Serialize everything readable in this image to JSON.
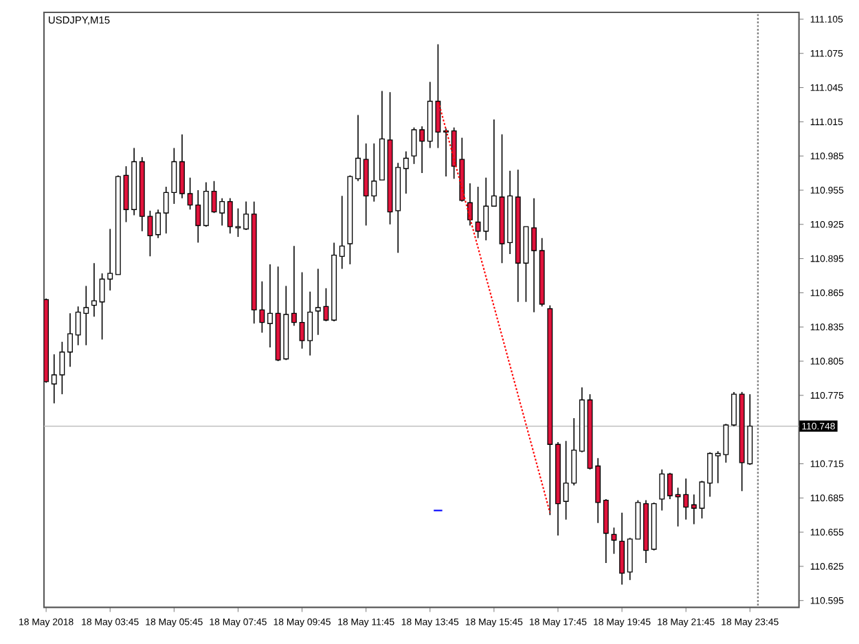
{
  "chart_data": {
    "type": "candlestick",
    "title": "USDJPY,M15",
    "x": [
      "2018-05-18T01:45",
      "2018-05-18T02:00",
      "2018-05-18T02:15",
      "2018-05-18T02:30",
      "2018-05-18T02:45",
      "2018-05-18T03:00",
      "2018-05-18T03:15",
      "2018-05-18T03:30",
      "2018-05-18T03:45",
      "2018-05-18T04:00",
      "2018-05-18T04:15",
      "2018-05-18T04:30",
      "2018-05-18T04:45",
      "2018-05-18T05:00",
      "2018-05-18T05:15",
      "2018-05-18T05:30",
      "2018-05-18T05:45",
      "2018-05-18T06:00",
      "2018-05-18T06:15",
      "2018-05-18T06:30",
      "2018-05-18T06:45",
      "2018-05-18T07:00",
      "2018-05-18T07:15",
      "2018-05-18T07:30",
      "2018-05-18T07:45",
      "2018-05-18T08:00",
      "2018-05-18T08:15",
      "2018-05-18T08:30",
      "2018-05-18T08:45",
      "2018-05-18T09:00",
      "2018-05-18T09:15",
      "2018-05-18T09:30",
      "2018-05-18T09:45",
      "2018-05-18T10:00",
      "2018-05-18T10:15",
      "2018-05-18T10:30",
      "2018-05-18T10:45",
      "2018-05-18T11:00",
      "2018-05-18T11:15",
      "2018-05-18T11:30",
      "2018-05-18T11:45",
      "2018-05-18T12:00",
      "2018-05-18T12:15",
      "2018-05-18T12:30",
      "2018-05-18T12:45",
      "2018-05-18T13:00",
      "2018-05-18T13:15",
      "2018-05-18T13:30",
      "2018-05-18T13:45",
      "2018-05-18T14:00",
      "2018-05-18T14:15",
      "2018-05-18T14:30",
      "2018-05-18T14:45",
      "2018-05-18T15:00",
      "2018-05-18T15:15",
      "2018-05-18T15:30",
      "2018-05-18T15:45",
      "2018-05-18T16:00",
      "2018-05-18T16:15",
      "2018-05-18T16:30",
      "2018-05-18T16:45",
      "2018-05-18T17:00",
      "2018-05-18T17:15",
      "2018-05-18T17:30",
      "2018-05-18T17:45",
      "2018-05-18T18:00",
      "2018-05-18T18:15",
      "2018-05-18T18:30",
      "2018-05-18T18:45",
      "2018-05-18T19:00",
      "2018-05-18T19:15",
      "2018-05-18T19:30",
      "2018-05-18T19:45",
      "2018-05-18T20:00",
      "2018-05-18T20:15",
      "2018-05-18T20:30",
      "2018-05-18T20:45",
      "2018-05-18T21:00",
      "2018-05-18T21:15",
      "2018-05-18T21:30",
      "2018-05-18T21:45",
      "2018-05-18T22:00",
      "2018-05-18T22:15",
      "2018-05-18T22:30",
      "2018-05-18T22:45",
      "2018-05-18T23:00",
      "2018-05-18T23:15",
      "2018-05-18T23:30",
      "2018-05-18T23:45"
    ],
    "ohlc": [
      [
        110.859,
        110.86,
        110.786,
        110.787
      ],
      [
        110.785,
        110.811,
        110.768,
        110.793
      ],
      [
        110.793,
        110.822,
        110.776,
        110.813
      ],
      [
        110.813,
        110.847,
        110.8,
        110.829
      ],
      [
        110.828,
        110.853,
        110.819,
        110.848
      ],
      [
        110.847,
        110.871,
        110.819,
        110.852
      ],
      [
        110.854,
        110.891,
        110.844,
        110.858
      ],
      [
        110.857,
        110.882,
        110.824,
        110.877
      ],
      [
        110.877,
        110.921,
        110.867,
        110.882
      ],
      [
        110.881,
        110.968,
        110.881,
        110.967
      ],
      [
        110.968,
        110.976,
        110.927,
        110.938
      ],
      [
        110.938,
        110.992,
        110.933,
        110.98
      ],
      [
        110.98,
        110.984,
        110.919,
        110.932
      ],
      [
        110.932,
        110.937,
        110.897,
        110.915
      ],
      [
        110.916,
        110.938,
        110.913,
        110.935
      ],
      [
        110.935,
        110.958,
        110.917,
        110.953
      ],
      [
        110.953,
        110.992,
        110.943,
        110.98
      ],
      [
        110.98,
        111.004,
        110.948,
        110.952
      ],
      [
        110.952,
        110.966,
        110.938,
        110.942
      ],
      [
        110.942,
        110.955,
        110.909,
        110.924
      ],
      [
        110.924,
        110.962,
        110.923,
        110.954
      ],
      [
        110.954,
        110.963,
        110.935,
        110.936
      ],
      [
        110.935,
        110.948,
        110.924,
        110.945
      ],
      [
        110.945,
        110.948,
        110.917,
        110.923
      ],
      [
        110.922,
        110.939,
        110.914,
        110.923
      ],
      [
        110.921,
        110.945,
        110.92,
        110.934
      ],
      [
        110.934,
        110.945,
        110.838,
        110.85
      ],
      [
        110.85,
        110.875,
        110.83,
        110.839
      ],
      [
        110.838,
        110.89,
        110.817,
        110.847
      ],
      [
        110.847,
        110.888,
        110.805,
        110.806
      ],
      [
        110.807,
        110.871,
        110.806,
        110.846
      ],
      [
        110.847,
        110.906,
        110.836,
        110.839
      ],
      [
        110.839,
        110.883,
        110.816,
        110.823
      ],
      [
        110.823,
        110.866,
        110.81,
        110.848
      ],
      [
        110.849,
        110.886,
        110.828,
        110.852
      ],
      [
        110.853,
        110.869,
        110.84,
        110.841
      ],
      [
        110.841,
        110.909,
        110.84,
        110.898
      ],
      [
        110.897,
        110.95,
        110.886,
        110.906
      ],
      [
        110.908,
        110.968,
        110.89,
        110.967
      ],
      [
        110.965,
        111.021,
        110.963,
        110.983
      ],
      [
        110.982,
        110.996,
        110.924,
        110.95
      ],
      [
        110.95,
        110.996,
        110.945,
        110.963
      ],
      [
        110.964,
        111.042,
        110.964,
        111.0
      ],
      [
        110.999,
        111.041,
        110.925,
        110.936
      ],
      [
        110.937,
        110.979,
        110.9,
        110.975
      ],
      [
        110.974,
        110.989,
        110.952,
        110.983
      ],
      [
        110.985,
        111.01,
        110.978,
        111.008
      ],
      [
        111.008,
        111.011,
        110.97,
        110.998
      ],
      [
        110.998,
        111.05,
        110.992,
        111.033
      ],
      [
        111.033,
        111.083,
        110.992,
        111.006
      ],
      [
        111.007,
        111.009,
        110.967,
        111.006
      ],
      [
        111.007,
        111.01,
        110.965,
        110.976
      ],
      [
        110.982,
        111.001,
        110.945,
        110.946
      ],
      [
        110.944,
        110.961,
        110.924,
        110.929
      ],
      [
        110.927,
        110.958,
        110.913,
        110.919
      ],
      [
        110.919,
        110.966,
        110.911,
        110.941
      ],
      [
        110.941,
        111.017,
        110.941,
        110.95
      ],
      [
        110.949,
        111.004,
        110.891,
        110.908
      ],
      [
        110.909,
        110.972,
        110.899,
        110.95
      ],
      [
        110.949,
        110.973,
        110.857,
        110.891
      ],
      [
        110.891,
        110.923,
        110.857,
        110.923
      ],
      [
        110.922,
        110.948,
        110.848,
        110.902
      ],
      [
        110.902,
        110.913,
        110.853,
        110.855
      ],
      [
        110.851,
        110.854,
        110.67,
        110.732
      ],
      [
        110.732,
        110.734,
        110.652,
        110.68
      ],
      [
        110.682,
        110.735,
        110.666,
        110.698
      ],
      [
        110.698,
        110.755,
        110.696,
        110.727
      ],
      [
        110.726,
        110.782,
        110.725,
        110.771
      ],
      [
        110.771,
        110.776,
        110.71,
        110.711
      ],
      [
        110.713,
        110.72,
        110.663,
        110.681
      ],
      [
        110.683,
        110.684,
        110.628,
        110.654
      ],
      [
        110.653,
        110.659,
        110.636,
        110.648
      ],
      [
        110.647,
        110.672,
        110.609,
        110.619
      ],
      [
        110.62,
        110.65,
        110.613,
        110.649
      ],
      [
        110.649,
        110.683,
        110.649,
        110.681
      ],
      [
        110.68,
        110.683,
        110.628,
        110.639
      ],
      [
        110.64,
        110.681,
        110.639,
        110.68
      ],
      [
        110.684,
        110.71,
        110.674,
        110.706
      ],
      [
        110.706,
        110.707,
        110.684,
        110.687
      ],
      [
        110.688,
        110.694,
        110.66,
        110.686
      ],
      [
        110.688,
        110.702,
        110.666,
        110.677
      ],
      [
        110.679,
        110.688,
        110.662,
        110.676
      ],
      [
        110.676,
        110.7,
        110.667,
        110.699
      ],
      [
        110.698,
        110.725,
        110.686,
        110.724
      ],
      [
        110.722,
        110.726,
        110.698,
        110.724
      ],
      [
        110.723,
        110.75,
        110.716,
        110.749
      ],
      [
        110.749,
        110.778,
        110.748,
        110.776
      ],
      [
        110.776,
        110.778,
        110.691,
        110.716
      ],
      [
        110.715,
        110.776,
        110.714,
        110.748
      ]
    ],
    "colors": [
      "#e0143c",
      "#ffffff",
      "#ffffff",
      "#ffffff",
      "#ffffff",
      "#ffffff",
      "#ffffff",
      "#ffffff",
      "#ffffff",
      "#ffffff",
      "#e0143c",
      "#ffffff",
      "#e0143c",
      "#e0143c",
      "#ffffff",
      "#ffffff",
      "#ffffff",
      "#e0143c",
      "#e0143c",
      "#e0143c",
      "#ffffff",
      "#e0143c",
      "#ffffff",
      "#e0143c",
      "#ffffff",
      "#ffffff",
      "#e0143c",
      "#e0143c",
      "#ffffff",
      "#e0143c",
      "#ffffff",
      "#e0143c",
      "#e0143c",
      "#ffffff",
      "#ffffff",
      "#e0143c",
      "#ffffff",
      "#ffffff",
      "#ffffff",
      "#ffffff",
      "#e0143c",
      "#ffffff",
      "#ffffff",
      "#e0143c",
      "#ffffff",
      "#ffffff",
      "#ffffff",
      "#e0143c",
      "#ffffff",
      "#e0143c",
      "#e0143c",
      "#e0143c",
      "#e0143c",
      "#e0143c",
      "#e0143c",
      "#ffffff",
      "#ffffff",
      "#e0143c",
      "#ffffff",
      "#e0143c",
      "#ffffff",
      "#e0143c",
      "#e0143c",
      "#e0143c",
      "#e0143c",
      "#ffffff",
      "#ffffff",
      "#ffffff",
      "#e0143c",
      "#e0143c",
      "#e0143c",
      "#e0143c",
      "#e0143c",
      "#ffffff",
      "#ffffff",
      "#e0143c",
      "#ffffff",
      "#ffffff",
      "#e0143c",
      "#e0143c",
      "#e0143c",
      "#e0143c",
      "#ffffff",
      "#ffffff",
      "#ffffff",
      "#ffffff",
      "#ffffff",
      "#e0143c",
      "#ffffff"
    ],
    "series": [
      {
        "type": "line",
        "x": [
          "2018-05-18T14:00",
          "2018-05-18T17:30"
        ],
        "values": [
          111.034,
          110.672
        ],
        "color": "#ff0000",
        "line_style": "dotted"
      },
      {
        "type": "line",
        "x": [
          "2018-05-18T13:52",
          "2018-05-18T14:08"
        ],
        "values": [
          110.674,
          110.674
        ],
        "color": "#0000ff",
        "line_style": "solid"
      }
    ],
    "ref_lines": [
      {
        "axis": "y",
        "value": 110.748,
        "label": "110.748",
        "color": "#c0c0c0"
      },
      {
        "axis": "x",
        "value": "2018-05-19T00:00",
        "color": "#808080",
        "line_style": "dotted"
      }
    ],
    "xlim": [
      "2018-05-18T01:41",
      "2018-05-19T01:17"
    ],
    "ylim": [
      110.589,
      111.111
    ],
    "xticks": [
      {
        "value": "2018-05-18T01:45",
        "label": "18 May 2018"
      },
      {
        "value": "2018-05-18T03:45",
        "label": "18 May 03:45"
      },
      {
        "value": "2018-05-18T05:45",
        "label": "18 May 05:45"
      },
      {
        "value": "2018-05-18T07:45",
        "label": "18 May 07:45"
      },
      {
        "value": "2018-05-18T09:45",
        "label": "18 May 09:45"
      },
      {
        "value": "2018-05-18T11:45",
        "label": "18 May 11:45"
      },
      {
        "value": "2018-05-18T13:45",
        "label": "18 May 13:45"
      },
      {
        "value": "2018-05-18T15:45",
        "label": "18 May 15:45"
      },
      {
        "value": "2018-05-18T17:45",
        "label": "18 May 17:45"
      },
      {
        "value": "2018-05-18T19:45",
        "label": "18 May 19:45"
      },
      {
        "value": "2018-05-18T21:45",
        "label": "18 May 21:45"
      },
      {
        "value": "2018-05-18T23:45",
        "label": "18 May 23:45"
      }
    ],
    "yticks": [
      111.105,
      111.075,
      111.045,
      111.015,
      110.985,
      110.955,
      110.925,
      110.895,
      110.865,
      110.835,
      110.805,
      110.775,
      110.715,
      110.685,
      110.655,
      110.625,
      110.595
    ]
  }
}
